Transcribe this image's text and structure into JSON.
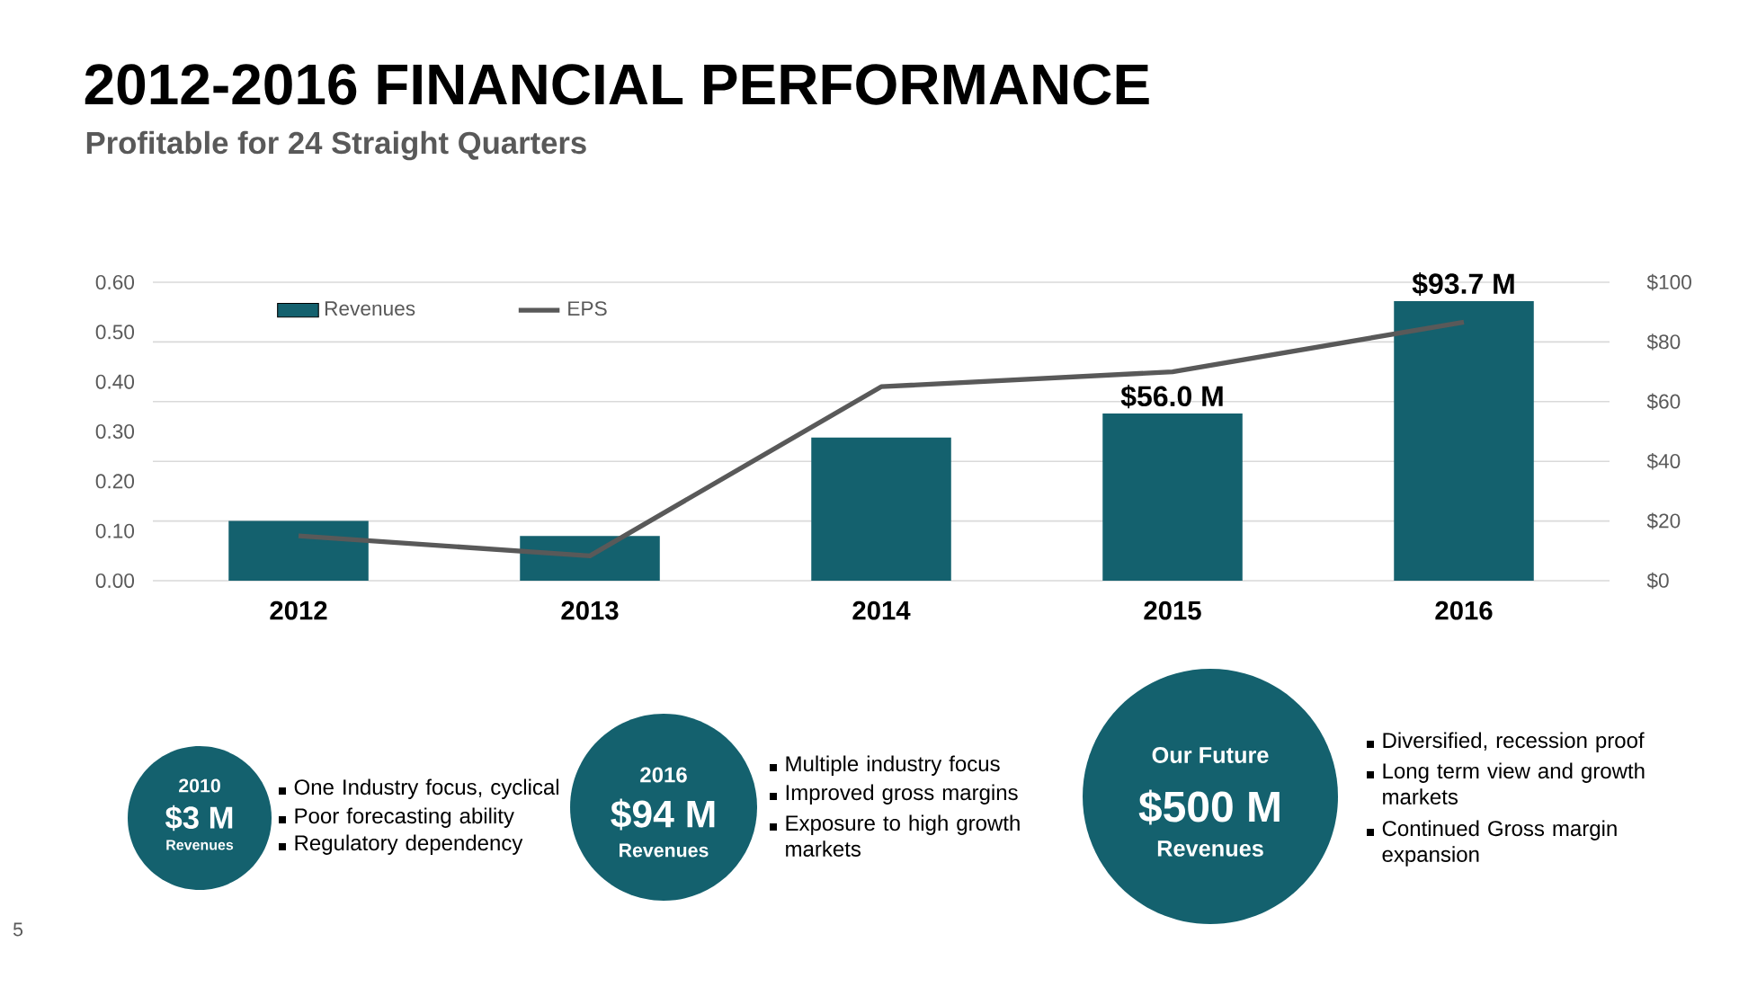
{
  "chart_data": {
    "type": "bar",
    "title": "2012-2016 FINANCIAL PERFORMANCE",
    "subtitle": "Profitable for 24 Straight Quarters",
    "categories": [
      "2012",
      "2013",
      "2014",
      "2015",
      "2016"
    ],
    "series": [
      {
        "name": "Revenues",
        "axis": "y2",
        "color": "#14616e",
        "values": [
          20,
          15,
          48,
          56.0,
          93.7
        ],
        "value_labels": [
          null,
          null,
          null,
          "$56.0 M",
          "$93.7 M"
        ]
      },
      {
        "name": "EPS",
        "type": "line",
        "color": "#595959",
        "values": [
          0.09,
          0.05,
          0.39,
          0.42,
          0.52
        ]
      }
    ],
    "ylim": [
      0,
      0.6
    ],
    "yticks": [
      {
        "value": 0,
        "label": "0.00"
      },
      {
        "value": 0.1,
        "label": "0.10"
      },
      {
        "value": 0.2,
        "label": "0.20"
      },
      {
        "value": 0.3,
        "label": "0.30"
      },
      {
        "value": 0.4,
        "label": "0.40"
      },
      {
        "value": 0.5,
        "label": "0.50"
      },
      {
        "value": 0.6,
        "label": "0.60"
      }
    ],
    "y2lim": [
      0,
      100
    ],
    "y2ticks": [
      {
        "value": 0,
        "label": "$0"
      },
      {
        "value": 20,
        "label": "$20"
      },
      {
        "value": 40,
        "label": "$40"
      },
      {
        "value": 60,
        "label": "$60"
      },
      {
        "value": 80,
        "label": "$80"
      },
      {
        "value": 100,
        "label": "$100"
      }
    ],
    "grid": "y",
    "legend": "top left",
    "annotations": [
      "5",
      "2010",
      "$3 M",
      "Revenues",
      "One Industry focus, cyclical",
      "Poor forecasting ability",
      "Regulatory dependency",
      "2016",
      "$94 M",
      "Revenues",
      "Multiple industry focus",
      "Improved gross margins",
      "Exposure to high growth markets",
      "Our Future",
      "$500 M",
      "Revenues",
      "Diversified, recession proof",
      "Long term view and growth markets",
      "Continued Gross margin expansion"
    ]
  }
}
